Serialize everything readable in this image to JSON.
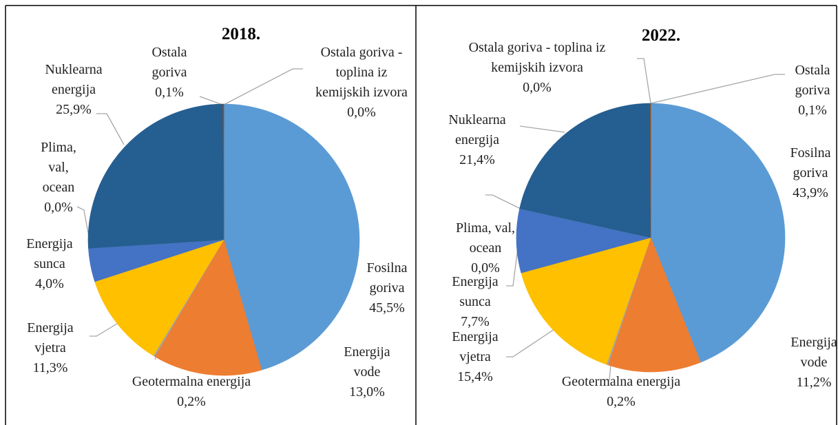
{
  "chart_data": [
    {
      "type": "pie",
      "title": "2018.",
      "categories": [
        "Fosilna goriva",
        "Energija vode",
        "Geotermalna energija",
        "Energija vjetra",
        "Energija sunca",
        "Plima, val, ocean",
        "Nuklearna energija",
        "Ostala goriva",
        "Ostala goriva - toplina iz kemijskih izvora"
      ],
      "values": [
        45.5,
        13.0,
        0.2,
        11.3,
        4.0,
        0.0,
        25.9,
        0.1,
        0.0
      ],
      "value_labels": [
        "45,5%",
        "13,0%",
        "0,2%",
        "11,3%",
        "4,0%",
        "0,0%",
        "25,9%",
        "0,1%",
        "0,0%"
      ],
      "colors": [
        "#5b9bd5",
        "#ed7d31",
        "#a5a5a5",
        "#ffc000",
        "#4472c4",
        "#70ad47",
        "#255e91",
        "#9e480e",
        "#636363"
      ]
    },
    {
      "type": "pie",
      "title": "2022.",
      "categories": [
        "Fosilna goriva",
        "Energija vode",
        "Geotermalna energija",
        "Energija vjetra",
        "Energija sunca",
        "Plima, val, ocean",
        "Nuklearna energija",
        "Ostala goriva",
        "Ostala goriva - toplina iz kemijskih izvora"
      ],
      "values": [
        43.9,
        11.2,
        0.2,
        15.4,
        7.7,
        0.0,
        21.4,
        0.1,
        0.0
      ],
      "value_labels": [
        "43,9%",
        "11,2%",
        "0,2%",
        "15,4%",
        "7,7%",
        "0,0%",
        "21,4%",
        "0,1%",
        "0,0%"
      ],
      "colors": [
        "#5b9bd5",
        "#ed7d31",
        "#a5a5a5",
        "#ffc000",
        "#4472c4",
        "#70ad47",
        "#255e91",
        "#9e480e",
        "#636363"
      ]
    }
  ]
}
